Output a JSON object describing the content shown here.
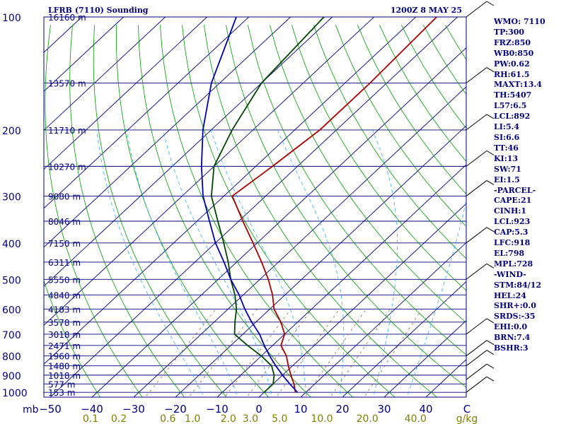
{
  "header": {
    "station": "LFRB (7110) Sounding",
    "time": "1200Z  8 MAY 25"
  },
  "indices": [
    "WMO: 7110",
    "TP:300",
    "FRZ:850",
    "WB0:850",
    "PW:0.62",
    "RH:61.5",
    "MAXT:13.4",
    "TH:5407",
    "L57:6.5",
    "LCL:892",
    "LI:5.4",
    "SI:6.6",
    "TT:46",
    "KI:13",
    "SW:71",
    "EI:1.5",
    "-PARCEL-",
    "CAPE:21",
    "CINH:1",
    "LCL:923",
    "CAP:5.3",
    "LFC:918",
    "EL:798",
    "MPL:728",
    "-WIND-",
    "STM:84/12",
    "HEL:24",
    "SHR+:0.0",
    "SRDS:-35",
    "EHI:0.0",
    "BRN:7.4",
    "BSHR:3"
  ],
  "chart_data": {
    "type": "line",
    "chart_kind": "Skew-T log-P sounding",
    "xlabel": "",
    "ylabel": "mb",
    "temp_ticks": [
      "−50",
      "−40",
      "−30",
      "−20",
      "−10",
      "0",
      "10",
      "20",
      "30",
      "40",
      "C"
    ],
    "temp_values": [
      -50,
      -40,
      -30,
      -20,
      -10,
      0,
      10,
      20,
      30,
      40
    ],
    "mixing_ratio_ticks": [
      "0.1",
      "0.2",
      "0.6",
      "1.0",
      "2.0",
      "3.0",
      "5.0",
      "10.0",
      "20.0",
      "40.0",
      "g/kg"
    ],
    "mixing_ratio_values": [
      0.1,
      0.2,
      0.6,
      1.0,
      2.0,
      3.0,
      5.0,
      10.0,
      20.0,
      40.0
    ],
    "pressure_ticks": [
      100,
      200,
      300,
      400,
      500,
      600,
      700,
      800,
      900,
      1000
    ],
    "height_labels": [
      {
        "p": 100,
        "label": "16160 m"
      },
      {
        "p": 150,
        "label": "13570 m"
      },
      {
        "p": 200,
        "label": "11710 m"
      },
      {
        "p": 250,
        "label": "10270 m"
      },
      {
        "p": 300,
        "label": "9080 m"
      },
      {
        "p": 350,
        "label": "8046 m"
      },
      {
        "p": 400,
        "label": "7150 m"
      },
      {
        "p": 450,
        "label": "6311 m"
      },
      {
        "p": 500,
        "label": "5550 m"
      },
      {
        "p": 550,
        "label": "4840 m"
      },
      {
        "p": 600,
        "label": "4183 m"
      },
      {
        "p": 650,
        "label": "3578 m"
      },
      {
        "p": 700,
        "label": "3018 m"
      },
      {
        "p": 750,
        "label": "2471 m"
      },
      {
        "p": 800,
        "label": "1960 m"
      },
      {
        "p": 850,
        "label": "1480 m"
      },
      {
        "p": 900,
        "label": "1018 m"
      },
      {
        "p": 950,
        "label": "577 m"
      },
      {
        "p": 1000,
        "label": "153 m"
      }
    ],
    "ylim": [
      100,
      1030
    ],
    "series": [
      {
        "color": "#aa0000",
        "points": [
          {
            "p": 1000,
            "t": 7.5
          },
          {
            "p": 950,
            "t": 5
          },
          {
            "p": 900,
            "t": 2
          },
          {
            "p": 850,
            "t": -1
          },
          {
            "p": 800,
            "t": -4
          },
          {
            "p": 750,
            "t": -8
          },
          {
            "p": 700,
            "t": -10
          },
          {
            "p": 650,
            "t": -14
          },
          {
            "p": 600,
            "t": -19
          },
          {
            "p": 550,
            "t": -23
          },
          {
            "p": 500,
            "t": -28
          },
          {
            "p": 450,
            "t": -34
          },
          {
            "p": 400,
            "t": -41
          },
          {
            "p": 350,
            "t": -49
          },
          {
            "p": 300,
            "t": -58
          },
          {
            "p": 250,
            "t": -56
          },
          {
            "p": 200,
            "t": -54
          },
          {
            "p": 150,
            "t": -54
          },
          {
            "p": 100,
            "t": -55
          }
        ]
      },
      {
        "color": "#004400",
        "points": [
          {
            "p": 1000,
            "t": 0
          },
          {
            "p": 950,
            "t": 0
          },
          {
            "p": 900,
            "t": -2
          },
          {
            "p": 850,
            "t": -5
          },
          {
            "p": 800,
            "t": -10
          },
          {
            "p": 750,
            "t": -16
          },
          {
            "p": 700,
            "t": -22
          },
          {
            "p": 650,
            "t": -25
          },
          {
            "p": 600,
            "t": -28
          },
          {
            "p": 550,
            "t": -32
          },
          {
            "p": 500,
            "t": -37
          },
          {
            "p": 450,
            "t": -42
          },
          {
            "p": 400,
            "t": -48
          },
          {
            "p": 350,
            "t": -55
          },
          {
            "p": 300,
            "t": -63
          },
          {
            "p": 250,
            "t": -70
          },
          {
            "p": 200,
            "t": -75
          },
          {
            "p": 150,
            "t": -80
          },
          {
            "p": 100,
            "t": -82
          }
        ]
      },
      {
        "color": "#0000aa",
        "points": [
          {
            "p": 1000,
            "t": 8
          },
          {
            "p": 950,
            "t": 4
          },
          {
            "p": 900,
            "t": 0
          },
          {
            "p": 850,
            "t": -4
          },
          {
            "p": 800,
            "t": -8
          },
          {
            "p": 750,
            "t": -12
          },
          {
            "p": 700,
            "t": -16
          },
          {
            "p": 650,
            "t": -21
          },
          {
            "p": 600,
            "t": -26
          },
          {
            "p": 550,
            "t": -31
          },
          {
            "p": 500,
            "t": -37
          },
          {
            "p": 450,
            "t": -43
          },
          {
            "p": 400,
            "t": -50
          },
          {
            "p": 350,
            "t": -57
          },
          {
            "p": 300,
            "t": -65
          },
          {
            "p": 250,
            "t": -73
          },
          {
            "p": 200,
            "t": -82
          },
          {
            "p": 150,
            "t": -92
          },
          {
            "p": 100,
            "t": -103
          }
        ]
      }
    ],
    "wind_barbs": [
      {
        "p": 100
      },
      {
        "p": 150
      },
      {
        "p": 200
      },
      {
        "p": 250
      },
      {
        "p": 300
      },
      {
        "p": 400
      },
      {
        "p": 500
      },
      {
        "p": 700
      },
      {
        "p": 800
      },
      {
        "p": 850
      },
      {
        "p": 925
      },
      {
        "p": 1000
      }
    ],
    "colors": {
      "frame": "#00007f",
      "isotherm": "#00007f",
      "dry_adiabat": "#009900",
      "moist_adiabat": "#33aaff",
      "mixing_ratio": "#8b6b3a",
      "tick_label": "#00007f",
      "mixing_label": "#7f7f00"
    }
  }
}
